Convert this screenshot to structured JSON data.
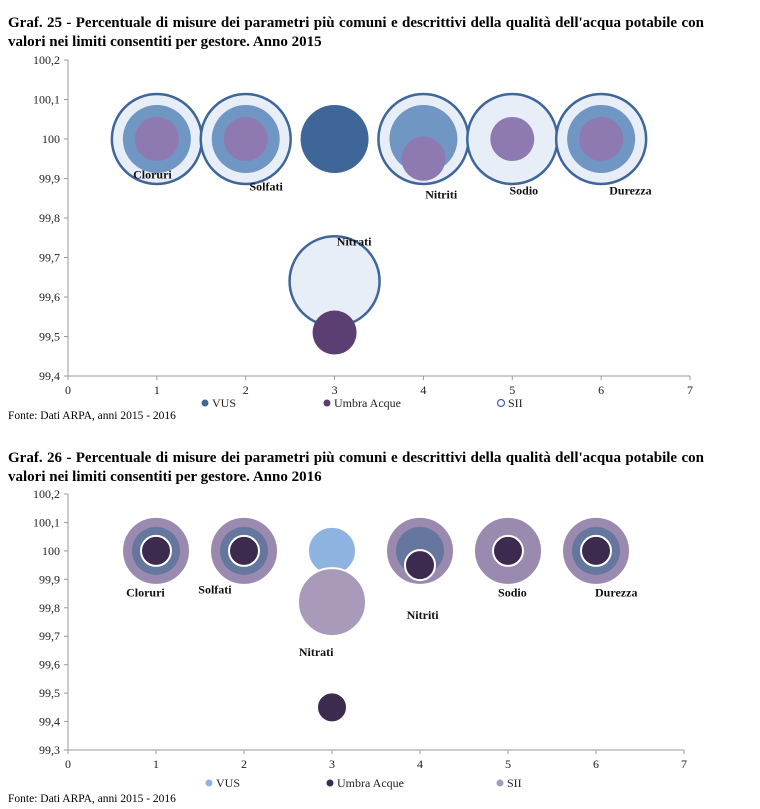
{
  "source_text": "Fonte: Dati ARPA, anni 2015 - 2016",
  "colors": {
    "VUS": "#3e6699",
    "Umbra Acque": "#5b3e72",
    "SII": "#e8eef7"
  },
  "chart_data": [
    {
      "type": "scatter",
      "title": "Graf. 25 - Percentuale di misure dei parametri più comuni e descrittivi della qualità dell'acqua potabile con valori nei limiti consentiti per gestore. Anno 2015",
      "xlabel": "",
      "ylabel": "",
      "xlim": [
        0,
        7
      ],
      "ylim": [
        99.4,
        100.2
      ],
      "xticks": [
        "0",
        "1",
        "2",
        "3",
        "4",
        "5",
        "6",
        "7"
      ],
      "yticks": [
        "99,4",
        "99,5",
        "99,6",
        "99,7",
        "99,8",
        "99,9",
        "100",
        "100,1",
        "100,2"
      ],
      "grid": false,
      "legend": [
        {
          "name": "VUS",
          "marker": "filled",
          "color": "#3e6699"
        },
        {
          "name": "Umbra Acque",
          "marker": "filled",
          "color": "#5b3e72"
        },
        {
          "name": "SII",
          "marker": "ring",
          "color": "#3e6699"
        }
      ],
      "bubbles": [
        {
          "series": "SII",
          "x": 1,
          "y": 100,
          "size": "large",
          "fill": "#e8eef7",
          "stroke": "#3e6699"
        },
        {
          "series": "VUS",
          "x": 1,
          "y": 100,
          "size": "medium",
          "fill": "#7096c4",
          "stroke": "none"
        },
        {
          "series": "Umbra Acque",
          "x": 1,
          "y": 100,
          "size": "small",
          "fill": "#8e7ab0",
          "stroke": "none"
        },
        {
          "series": "SII",
          "x": 2,
          "y": 100,
          "size": "large",
          "fill": "#e8eef7",
          "stroke": "#3e6699"
        },
        {
          "series": "VUS",
          "x": 2,
          "y": 100,
          "size": "medium",
          "fill": "#7096c4",
          "stroke": "none"
        },
        {
          "series": "Umbra Acque",
          "x": 2,
          "y": 100,
          "size": "small",
          "fill": "#8e7ab0",
          "stroke": "none"
        },
        {
          "series": "VUS",
          "x": 3,
          "y": 100,
          "size": "medium",
          "fill": "#3e6699",
          "stroke": "none"
        },
        {
          "series": "SII",
          "x": 3,
          "y": 99.64,
          "size": "large",
          "fill": "#e8eef7",
          "stroke": "#3e6699"
        },
        {
          "series": "Umbra Acque",
          "x": 3,
          "y": 99.51,
          "size": "small",
          "fill": "#5b3e72",
          "stroke": "none"
        },
        {
          "series": "SII",
          "x": 4,
          "y": 100,
          "size": "large",
          "fill": "#e8eef7",
          "stroke": "#3e6699"
        },
        {
          "series": "VUS",
          "x": 4,
          "y": 100,
          "size": "medium",
          "fill": "#7096c4",
          "stroke": "none"
        },
        {
          "series": "Umbra Acque",
          "x": 4,
          "y": 99.95,
          "size": "small",
          "fill": "#8e7ab0",
          "stroke": "none"
        },
        {
          "series": "SII",
          "x": 5,
          "y": 100,
          "size": "large",
          "fill": "#e8eef7",
          "stroke": "#3e6699"
        },
        {
          "series": "Umbra Acque",
          "x": 5,
          "y": 100,
          "size": "small",
          "fill": "#8e7ab0",
          "stroke": "none"
        },
        {
          "series": "SII",
          "x": 6,
          "y": 100,
          "size": "large",
          "fill": "#e8eef7",
          "stroke": "#3e6699"
        },
        {
          "series": "VUS",
          "x": 6,
          "y": 100,
          "size": "medium",
          "fill": "#7096c4",
          "stroke": "none"
        },
        {
          "series": "Umbra Acque",
          "x": 6,
          "y": 100,
          "size": "small",
          "fill": "#8e7ab0",
          "stroke": "none"
        }
      ],
      "labels": [
        {
          "text": "Cloruri",
          "x": 0.95,
          "y": 99.9
        },
        {
          "text": "Solfati",
          "x": 2.23,
          "y": 99.87
        },
        {
          "text": "Nitrati",
          "x": 3.22,
          "y": 99.73
        },
        {
          "text": "Nitriti",
          "x": 4.2,
          "y": 99.85
        },
        {
          "text": "Sodio",
          "x": 5.13,
          "y": 99.86
        },
        {
          "text": "Durezza",
          "x": 6.33,
          "y": 99.86
        }
      ]
    },
    {
      "type": "scatter",
      "title": "Graf. 26 - Percentuale di misure dei parametri più comuni e descrittivi della qualità dell'acqua potabile con valori nei limiti consentiti per gestore. Anno 2016",
      "xlabel": "",
      "ylabel": "",
      "xlim": [
        0,
        7
      ],
      "ylim": [
        99.3,
        100.2
      ],
      "xticks": [
        "0",
        "1",
        "2",
        "3",
        "4",
        "5",
        "6",
        "7"
      ],
      "yticks": [
        "99,3",
        "99,4",
        "99,5",
        "99,6",
        "99,7",
        "99,8",
        "99,9",
        "100",
        "100,1",
        "100,2"
      ],
      "grid": false,
      "legend": [
        {
          "name": "VUS",
          "marker": "filled",
          "color": "#8fb3e0"
        },
        {
          "name": "Umbra Acque",
          "marker": "filled",
          "color": "#3c2a4f"
        },
        {
          "name": "SII",
          "marker": "filled",
          "color": "#a89ab8"
        }
      ],
      "bubbles": [
        {
          "series": "SII",
          "x": 1,
          "y": 100,
          "size": "large",
          "fill": "#9a8aaf",
          "stroke": "#ffffff"
        },
        {
          "series": "VUS",
          "x": 1,
          "y": 100,
          "size": "medium",
          "fill": "#66779f",
          "stroke": "none"
        },
        {
          "series": "Umbra Acque",
          "x": 1,
          "y": 100,
          "size": "small",
          "fill": "#3c2a4f",
          "stroke": "#ffffff"
        },
        {
          "series": "SII",
          "x": 2,
          "y": 100,
          "size": "large",
          "fill": "#9a8aaf",
          "stroke": "#ffffff"
        },
        {
          "series": "VUS",
          "x": 2,
          "y": 100,
          "size": "medium",
          "fill": "#66779f",
          "stroke": "none"
        },
        {
          "series": "Umbra Acque",
          "x": 2,
          "y": 100,
          "size": "small",
          "fill": "#3c2a4f",
          "stroke": "#ffffff"
        },
        {
          "series": "VUS",
          "x": 3,
          "y": 100,
          "size": "medium",
          "fill": "#8fb3e0",
          "stroke": "#ffffff"
        },
        {
          "series": "SII",
          "x": 3,
          "y": 99.82,
          "size": "large",
          "fill": "#a89ab8",
          "stroke": "#ffffff"
        },
        {
          "series": "Umbra Acque",
          "x": 3,
          "y": 99.45,
          "size": "small",
          "fill": "#3c2a4f",
          "stroke": "#ffffff"
        },
        {
          "series": "SII",
          "x": 4,
          "y": 100,
          "size": "large",
          "fill": "#9a8aaf",
          "stroke": "#ffffff"
        },
        {
          "series": "VUS",
          "x": 4,
          "y": 100,
          "size": "medium",
          "fill": "#66779f",
          "stroke": "none"
        },
        {
          "series": "Umbra Acque",
          "x": 4,
          "y": 99.95,
          "size": "small",
          "fill": "#3c2a4f",
          "stroke": "#ffffff"
        },
        {
          "series": "SII",
          "x": 5,
          "y": 100,
          "size": "large",
          "fill": "#9a8aaf",
          "stroke": "#ffffff"
        },
        {
          "series": "Umbra Acque",
          "x": 5,
          "y": 100,
          "size": "small",
          "fill": "#3c2a4f",
          "stroke": "#ffffff"
        },
        {
          "series": "SII",
          "x": 6,
          "y": 100,
          "size": "large",
          "fill": "#9a8aaf",
          "stroke": "#ffffff"
        },
        {
          "series": "VUS",
          "x": 6,
          "y": 100,
          "size": "medium",
          "fill": "#66779f",
          "stroke": "none"
        },
        {
          "series": "Umbra Acque",
          "x": 6,
          "y": 100,
          "size": "small",
          "fill": "#3c2a4f",
          "stroke": "#ffffff"
        }
      ],
      "labels": [
        {
          "text": "Cloruri",
          "x": 0.88,
          "y": 99.84
        },
        {
          "text": "Solfati",
          "x": 1.67,
          "y": 99.85
        },
        {
          "text": "Nitrati",
          "x": 2.82,
          "y": 99.63
        },
        {
          "text": "Nitriti",
          "x": 4.03,
          "y": 99.76
        },
        {
          "text": "Sodio",
          "x": 5.05,
          "y": 99.84
        },
        {
          "text": "Durezza",
          "x": 6.23,
          "y": 99.84
        }
      ]
    }
  ]
}
